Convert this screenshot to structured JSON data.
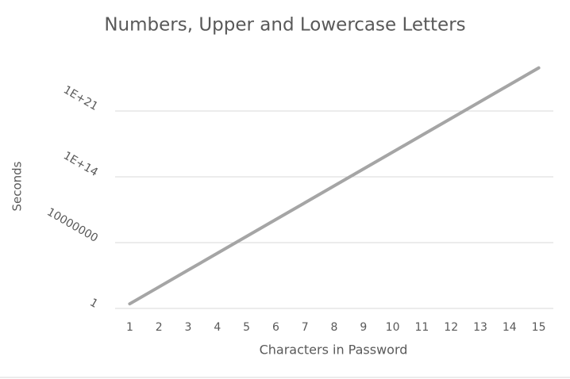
{
  "chart_data": {
    "type": "line",
    "title": "Numbers, Upper and Lowercase Letters",
    "x_label": "Characters in Password",
    "y_label": "Seconds",
    "categories": [
      "1",
      "2",
      "3",
      "4",
      "5",
      "6",
      "7",
      "8",
      "9",
      "10",
      "11",
      "12",
      "13",
      "14",
      "15"
    ],
    "series": [
      {
        "name": "Seconds",
        "color": "#a5a5a5",
        "values": [
          3.1,
          192,
          11916,
          739000,
          45800000,
          2840000000,
          176000000000,
          10900000000000,
          677000000000000,
          42000000000000000,
          2600000000000000000,
          1.61e+20,
          1e+22,
          6.2e+23,
          3.85e+25
        ]
      }
    ],
    "ylim": [
      1,
      1e+28
    ],
    "log_scale": true,
    "yticks": [
      1,
      10000000,
      {
        "value": 100000000000000.0,
        "label": "1E+14"
      },
      {
        "value": 1e+21,
        "label": "1E+21"
      }
    ],
    "grid": true
  }
}
